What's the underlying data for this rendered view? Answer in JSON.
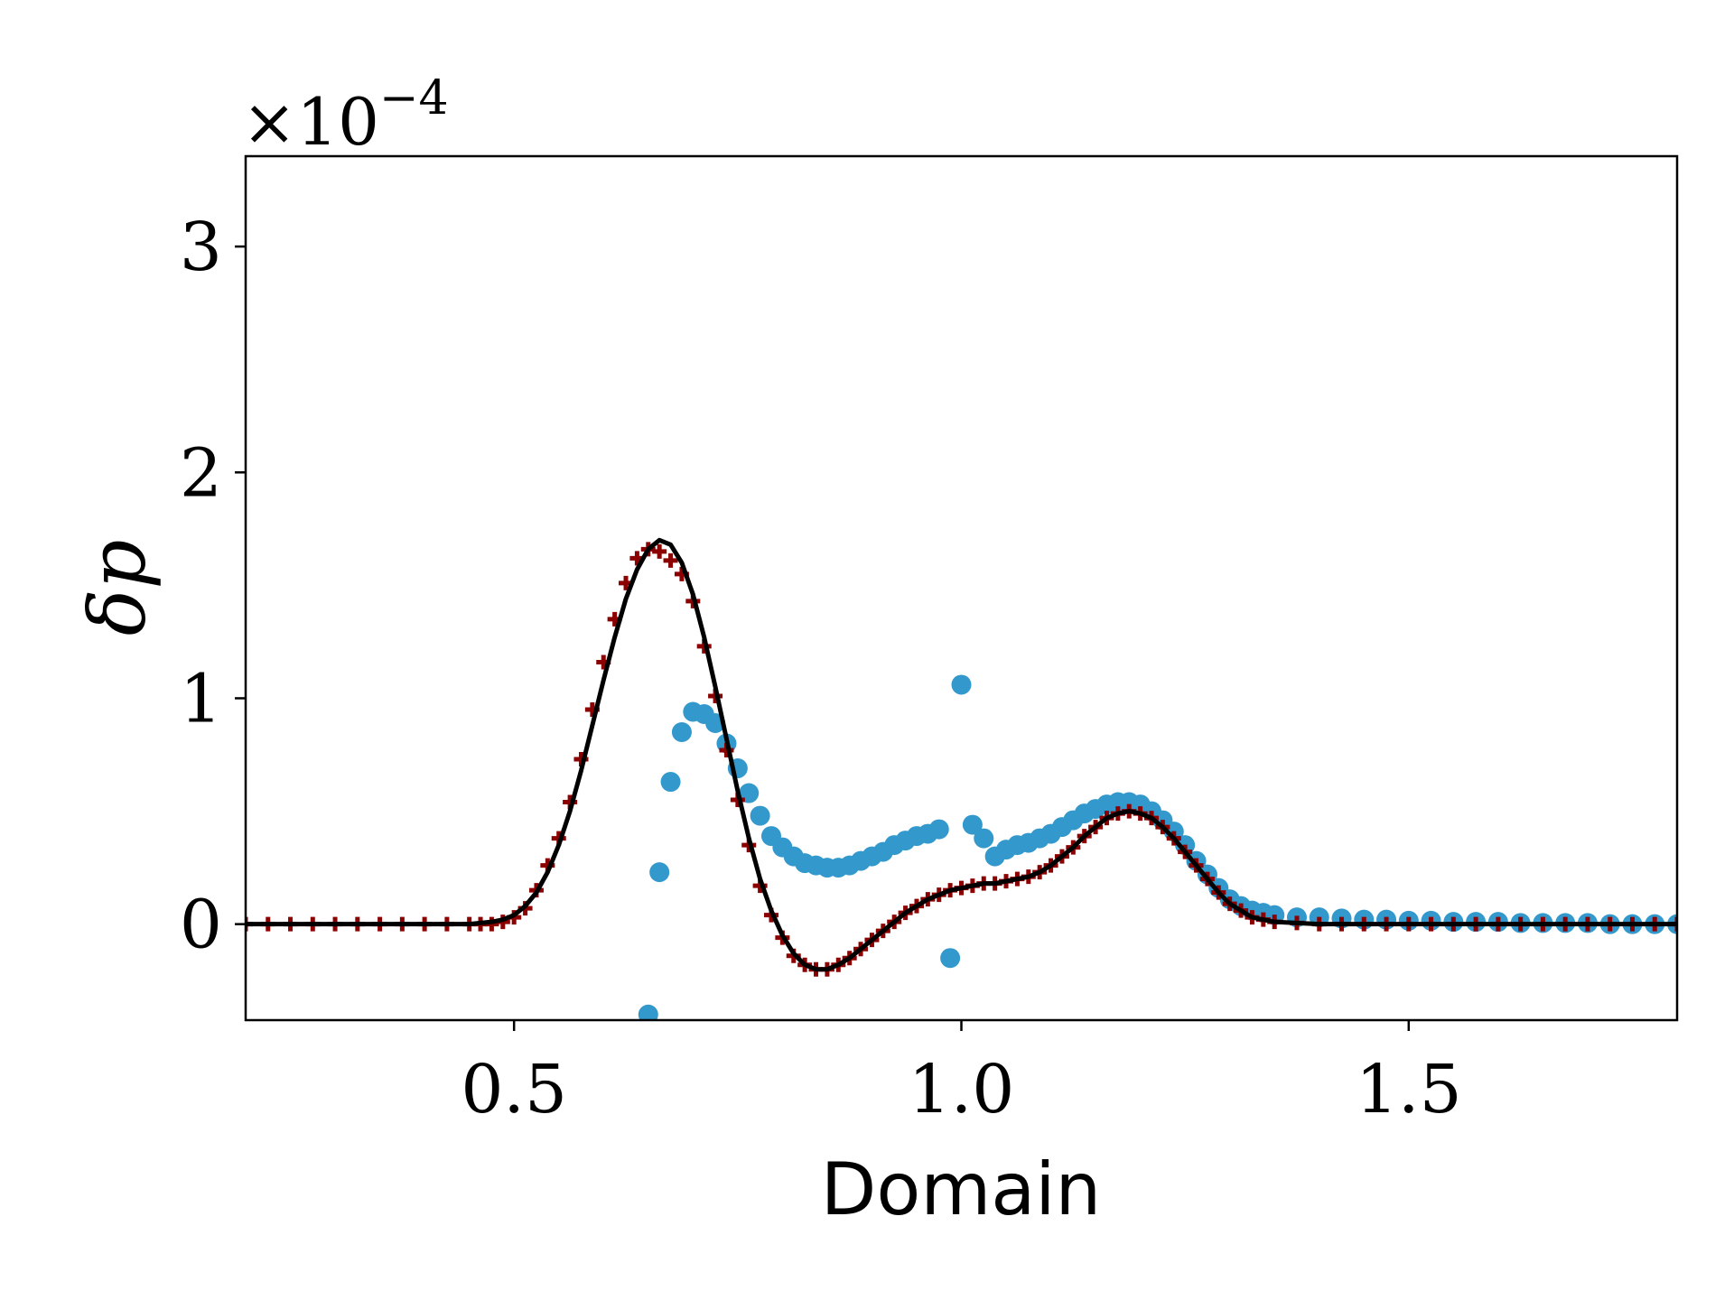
{
  "chart_data": {
    "type": "line",
    "xlabel": "Domain",
    "ylabel": "δp",
    "y_offset": {
      "base": "×10",
      "exponent": "−4"
    },
    "xlim": [
      0.2,
      1.8
    ],
    "ylim": [
      -0.425,
      3.4
    ],
    "xticks": [
      0.5,
      {
        "value": 1,
        "label": "1.0"
      },
      1.5
    ],
    "yticks": [
      0,
      1,
      2,
      3
    ],
    "x": [
      0.2,
      0.225,
      0.25,
      0.275,
      0.3,
      0.325,
      0.35,
      0.375,
      0.4,
      0.425,
      0.45,
      0.4625,
      0.475,
      0.4875,
      0.5,
      0.5125,
      0.525,
      0.5375,
      0.55,
      0.5625,
      0.575,
      0.5875,
      0.6,
      0.6125,
      0.625,
      0.6375,
      0.65,
      0.6625,
      0.675,
      0.6875,
      0.7,
      0.7125,
      0.725,
      0.7375,
      0.75,
      0.7625,
      0.775,
      0.7875,
      0.8,
      0.8125,
      0.825,
      0.8375,
      0.85,
      0.8625,
      0.875,
      0.8875,
      0.9,
      0.9125,
      0.925,
      0.9375,
      0.95,
      0.9625,
      0.975,
      0.9875,
      1.0,
      1.0125,
      1.025,
      1.0375,
      1.05,
      1.0625,
      1.075,
      1.0875,
      1.1,
      1.1125,
      1.125,
      1.1375,
      1.15,
      1.1625,
      1.175,
      1.1875,
      1.2,
      1.2125,
      1.225,
      1.2375,
      1.25,
      1.2625,
      1.275,
      1.2875,
      1.3,
      1.3125,
      1.325,
      1.3375,
      1.35,
      1.375,
      1.4,
      1.425,
      1.45,
      1.475,
      1.5,
      1.525,
      1.55,
      1.575,
      1.6,
      1.625,
      1.65,
      1.675,
      1.7,
      1.725,
      1.75,
      1.775,
      1.8
    ],
    "series": [
      {
        "type": "scatter",
        "marker": "circle",
        "color": "#3399cc",
        "values": [
          null,
          null,
          null,
          null,
          null,
          null,
          null,
          null,
          null,
          null,
          null,
          null,
          null,
          null,
          null,
          null,
          null,
          null,
          null,
          null,
          null,
          null,
          null,
          null,
          null,
          null,
          -0.4,
          0.23,
          0.63,
          0.85,
          0.94,
          0.93,
          0.89,
          0.8,
          0.69,
          0.58,
          0.48,
          0.39,
          0.34,
          0.3,
          0.27,
          0.26,
          0.25,
          0.25,
          0.26,
          0.28,
          0.3,
          0.32,
          0.35,
          0.37,
          0.39,
          0.4,
          0.42,
          -0.15,
          1.06,
          0.44,
          0.38,
          0.3,
          0.33,
          0.35,
          0.36,
          0.38,
          0.4,
          0.43,
          0.46,
          0.49,
          0.51,
          0.53,
          0.54,
          0.54,
          0.53,
          0.5,
          0.46,
          0.41,
          0.35,
          0.28,
          0.22,
          0.16,
          0.11,
          0.08,
          0.06,
          0.05,
          0.04,
          0.03,
          0.03,
          0.025,
          0.02,
          0.02,
          0.015,
          0.015,
          0.01,
          0.01,
          0.01,
          0.005,
          0.005,
          0.005,
          0.005,
          0,
          0,
          0,
          0
        ]
      },
      {
        "type": "scatter",
        "marker": "plus",
        "color": "#8b0000",
        "values": [
          0,
          0,
          0,
          0,
          0,
          0,
          0,
          0,
          0,
          0,
          0,
          0,
          0,
          0.01,
          0.03,
          0.07,
          0.15,
          0.26,
          0.38,
          0.54,
          0.73,
          0.95,
          1.16,
          1.35,
          1.51,
          1.62,
          1.66,
          1.65,
          1.61,
          1.55,
          1.43,
          1.23,
          1.01,
          0.77,
          0.55,
          0.35,
          0.17,
          0.04,
          -0.06,
          -0.14,
          -0.18,
          -0.2,
          -0.2,
          -0.18,
          -0.15,
          -0.11,
          -0.07,
          -0.03,
          0.01,
          0.05,
          0.08,
          0.11,
          0.13,
          0.15,
          0.16,
          0.17,
          0.18,
          0.18,
          0.19,
          0.2,
          0.21,
          0.23,
          0.26,
          0.3,
          0.34,
          0.39,
          0.43,
          0.47,
          0.49,
          0.5,
          0.49,
          0.47,
          0.43,
          0.38,
          0.32,
          0.26,
          0.2,
          0.14,
          0.09,
          0.06,
          0.03,
          0.02,
          0.01,
          0.005,
          0,
          0,
          0,
          0,
          0,
          0,
          0,
          0,
          0,
          0,
          0,
          0,
          0,
          0,
          0,
          0,
          0
        ]
      },
      {
        "type": "line",
        "color": "#000000",
        "values": [
          0,
          0,
          0,
          0,
          0,
          0,
          0,
          0,
          0,
          0,
          0,
          0.005,
          0.01,
          0.02,
          0.04,
          0.08,
          0.14,
          0.23,
          0.35,
          0.5,
          0.68,
          0.88,
          1.08,
          1.27,
          1.44,
          1.57,
          1.66,
          1.7,
          1.68,
          1.6,
          1.46,
          1.27,
          1.05,
          0.82,
          0.59,
          0.38,
          0.2,
          0.06,
          -0.05,
          -0.13,
          -0.18,
          -0.2,
          -0.2,
          -0.18,
          -0.15,
          -0.11,
          -0.07,
          -0.03,
          0.01,
          0.05,
          0.08,
          0.11,
          0.13,
          0.15,
          0.16,
          0.17,
          0.18,
          0.18,
          0.19,
          0.2,
          0.21,
          0.23,
          0.26,
          0.3,
          0.34,
          0.39,
          0.43,
          0.47,
          0.49,
          0.5,
          0.49,
          0.47,
          0.43,
          0.38,
          0.32,
          0.26,
          0.2,
          0.14,
          0.09,
          0.06,
          0.03,
          0.02,
          0.01,
          0.005,
          0,
          0,
          0,
          0,
          0,
          0,
          0,
          0,
          0,
          0,
          0,
          0,
          0,
          0,
          0,
          0,
          0
        ]
      }
    ]
  }
}
